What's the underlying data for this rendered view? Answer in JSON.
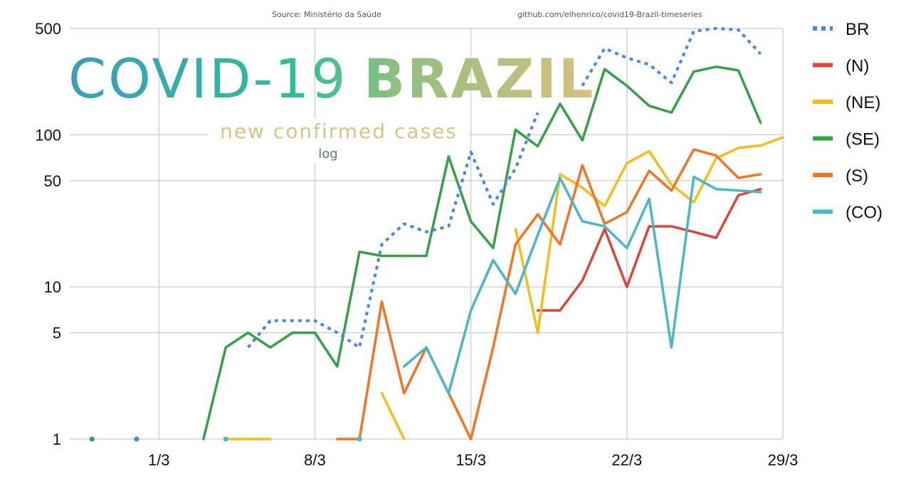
{
  "header": {
    "source": "Source: Ministério da Saúde",
    "repo": "github.com/elhenrico/covid19-Brazil-timeseries"
  },
  "title": {
    "part1": "COVID-19",
    "part2": "BRAZIL",
    "subtitle": "new confirmed cases",
    "scale": "log"
  },
  "colors": {
    "title_gradient": [
      "#3a9fb8",
      "#2fbf98",
      "#8ec07e",
      "#d9c07e"
    ],
    "subtitle": "#d6c489",
    "scale_label": "#5a7a78",
    "grid": "#cccccc"
  },
  "chart_data": {
    "type": "line",
    "scale": "log",
    "x": [
      "26/2",
      "27/2",
      "28/2",
      "29/2",
      "1/3",
      "2/3",
      "3/3",
      "4/3",
      "5/3",
      "6/3",
      "7/3",
      "8/3",
      "9/3",
      "10/3",
      "11/3",
      "12/3",
      "13/3",
      "14/3",
      "15/3",
      "16/3",
      "17/3",
      "18/3",
      "19/3",
      "20/3",
      "21/3",
      "22/3",
      "23/3",
      "24/3",
      "25/3",
      "26/3",
      "27/3",
      "28/3",
      "29/3"
    ],
    "x_tick_labels": [
      "1/3",
      "8/3",
      "15/3",
      "22/3",
      "29/3"
    ],
    "y_ticks": [
      1,
      5,
      10,
      50,
      100,
      500
    ],
    "ylim": [
      1,
      500
    ],
    "legend_position": "right",
    "grid": true,
    "series": [
      {
        "name": "BR",
        "color": "#4a86e8",
        "dashed": true,
        "values": [
          null,
          null,
          null,
          1,
          null,
          null,
          null,
          null,
          4,
          6,
          6,
          6,
          5,
          4,
          19,
          26,
          23,
          25,
          77,
          35,
          60,
          140,
          null,
          210,
          370,
          320,
          290,
          220,
          480,
          500,
          490,
          340,
          null
        ]
      },
      {
        "name": "(N)",
        "color": "#e04438",
        "dashed": false,
        "values": [
          null,
          null,
          null,
          null,
          null,
          null,
          null,
          null,
          null,
          null,
          null,
          null,
          null,
          null,
          null,
          null,
          null,
          null,
          null,
          null,
          null,
          7,
          7,
          11,
          24,
          10,
          25,
          25,
          23,
          21,
          40,
          44,
          null
        ]
      },
      {
        "name": "(NE)",
        "color": "#f7bb1a",
        "dashed": false,
        "values": [
          null,
          null,
          null,
          null,
          null,
          null,
          null,
          1,
          1,
          1,
          null,
          null,
          null,
          null,
          2,
          1,
          null,
          null,
          null,
          null,
          24,
          5,
          55,
          45,
          34,
          65,
          78,
          47,
          36,
          70,
          82,
          85,
          96
        ]
      },
      {
        "name": "(SE)",
        "color": "#34a048",
        "dashed": false,
        "values": [
          null,
          1,
          null,
          null,
          null,
          null,
          1,
          4,
          5,
          4,
          5,
          5,
          3,
          17,
          16,
          16,
          16,
          72,
          27,
          18,
          108,
          84,
          160,
          92,
          270,
          210,
          155,
          140,
          260,
          280,
          265,
          120,
          null
        ]
      },
      {
        "name": "(S)",
        "color": "#f47421",
        "dashed": false,
        "values": [
          null,
          null,
          null,
          null,
          null,
          null,
          null,
          null,
          null,
          null,
          null,
          null,
          1,
          1,
          8,
          2,
          4,
          2,
          1,
          4,
          19,
          30,
          19,
          63,
          26,
          31,
          58,
          43,
          80,
          73,
          52,
          55,
          null
        ]
      },
      {
        "name": "(CO)",
        "color": "#46b8c6",
        "dashed": false,
        "values": [
          null,
          null,
          null,
          null,
          null,
          null,
          null,
          1,
          null,
          null,
          null,
          null,
          null,
          1,
          null,
          3,
          4,
          2,
          7,
          15,
          9,
          22,
          52,
          27,
          25,
          18,
          38,
          4,
          53,
          44,
          43,
          42,
          null
        ]
      }
    ]
  }
}
